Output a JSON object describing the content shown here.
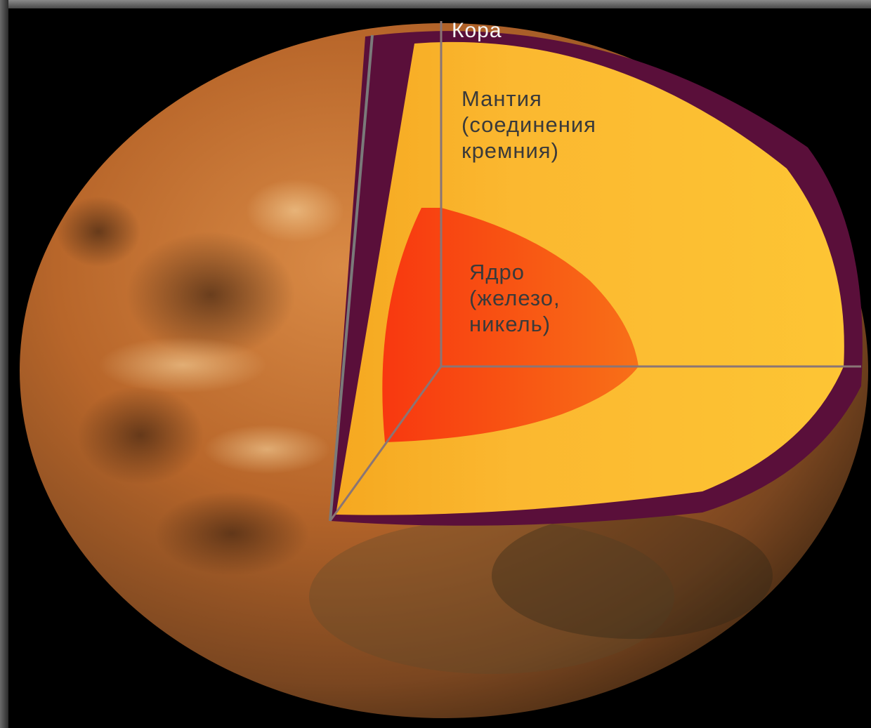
{
  "labels": {
    "crust": "Кора",
    "mantle": [
      "Мантия",
      "(соединения",
      "кремния)"
    ],
    "core": [
      "Ядро",
      "(железо,",
      "никель)"
    ]
  },
  "colors": {
    "surface": "#b8662a",
    "surface_dark": "#5a3418",
    "crust": "#5a0f3a",
    "mantle": "#fcc030",
    "mantle_edge": "#f0a020",
    "core": "#f86010",
    "core_edge": "#f83a10",
    "axes": "#8a7070"
  }
}
